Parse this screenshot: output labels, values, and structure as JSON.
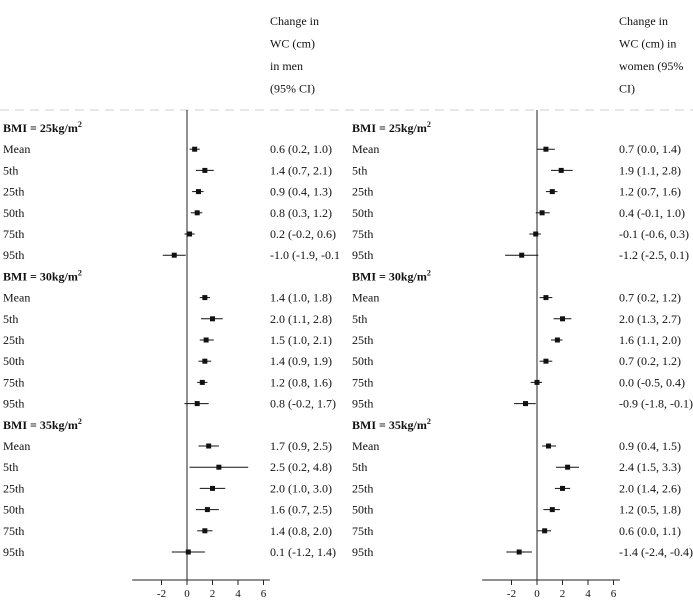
{
  "chart_data": [
    {
      "type": "scatter",
      "subtype": "forest_plot",
      "header_lines": [
        "Change in",
        "WC (cm)",
        "in men",
        "(95% CI)"
      ],
      "xaxis": {
        "ticks": [
          "-2",
          "0",
          "2",
          "4",
          "6"
        ],
        "xlim": [
          -4.3,
          6.5
        ],
        "reference_line": 0
      },
      "groups": [
        {
          "label": "BMI = 25kg/m",
          "sup": "2",
          "rows": [
            {
              "label": "Mean",
              "est": 0.6,
              "lo": 0.2,
              "hi": 1.0,
              "ci_text": "0.6 (0.2, 1.0)"
            },
            {
              "label": "5th",
              "est": 1.4,
              "lo": 0.7,
              "hi": 2.1,
              "ci_text": "1.4 (0.7, 2.1)"
            },
            {
              "label": "25th",
              "est": 0.9,
              "lo": 0.4,
              "hi": 1.3,
              "ci_text": "0.9 (0.4, 1.3)"
            },
            {
              "label": "50th",
              "est": 0.8,
              "lo": 0.3,
              "hi": 1.2,
              "ci_text": "0.8 (0.3, 1.2)"
            },
            {
              "label": "75th",
              "est": 0.2,
              "lo": -0.2,
              "hi": 0.6,
              "ci_text": "0.2 (-0.2, 0.6)"
            },
            {
              "label": "95th",
              "est": -1.0,
              "lo": -1.9,
              "hi": -0.1,
              "ci_text": "-1.0 (-1.9, -0.1"
            }
          ]
        },
        {
          "label": "BMI = 30kg/m",
          "sup": "2",
          "rows": [
            {
              "label": "Mean",
              "est": 1.4,
              "lo": 1.0,
              "hi": 1.8,
              "ci_text": "1.4 (1.0, 1.8)"
            },
            {
              "label": "5th",
              "est": 2.0,
              "lo": 1.1,
              "hi": 2.8,
              "ci_text": "2.0 (1.1, 2.8)"
            },
            {
              "label": "25th",
              "est": 1.5,
              "lo": 1.0,
              "hi": 2.1,
              "ci_text": "1.5 (1.0, 2.1)"
            },
            {
              "label": "50th",
              "est": 1.4,
              "lo": 0.9,
              "hi": 1.9,
              "ci_text": "1.4 (0.9, 1.9)"
            },
            {
              "label": "75th",
              "est": 1.2,
              "lo": 0.8,
              "hi": 1.6,
              "ci_text": "1.2 (0.8, 1.6)"
            },
            {
              "label": "95th",
              "est": 0.8,
              "lo": -0.2,
              "hi": 1.7,
              "ci_text": "0.8 (-0.2, 1.7)"
            }
          ]
        },
        {
          "label": "BMI = 35kg/m",
          "sup": "2",
          "rows": [
            {
              "label": "Mean",
              "est": 1.7,
              "lo": 0.9,
              "hi": 2.5,
              "ci_text": "1.7 (0.9, 2.5)"
            },
            {
              "label": "5th",
              "est": 2.5,
              "lo": 0.2,
              "hi": 4.8,
              "ci_text": "2.5 (0.2, 4.8)"
            },
            {
              "label": "25th",
              "est": 2.0,
              "lo": 1.0,
              "hi": 3.0,
              "ci_text": "2.0 (1.0, 3.0)"
            },
            {
              "label": "50th",
              "est": 1.6,
              "lo": 0.7,
              "hi": 2.5,
              "ci_text": "1.6 (0.7, 2.5)"
            },
            {
              "label": "75th",
              "est": 1.4,
              "lo": 0.8,
              "hi": 2.0,
              "ci_text": "1.4 (0.8, 2.0)"
            },
            {
              "label": "95th",
              "est": 0.1,
              "lo": -1.2,
              "hi": 1.4,
              "ci_text": "0.1 (-1.2, 1.4)"
            }
          ]
        }
      ]
    },
    {
      "type": "scatter",
      "subtype": "forest_plot",
      "header_lines": [
        "Change in",
        "WC (cm) in",
        "women (95%",
        "CI)"
      ],
      "xaxis": {
        "ticks": [
          "-2",
          "0",
          "2",
          "4",
          "6"
        ],
        "xlim": [
          -4.3,
          6.5
        ],
        "reference_line": 0
      },
      "groups": [
        {
          "label": "BMI = 25kg/m",
          "sup": "2",
          "rows": [
            {
              "label": "Mean",
              "est": 0.7,
              "lo": 0.0,
              "hi": 1.4,
              "ci_text": "0.7 (0.0, 1.4)"
            },
            {
              "label": "5th",
              "est": 1.9,
              "lo": 1.1,
              "hi": 2.8,
              "ci_text": "1.9 (1.1, 2.8)"
            },
            {
              "label": "25th",
              "est": 1.2,
              "lo": 0.7,
              "hi": 1.6,
              "ci_text": "1.2 (0.7, 1.6)"
            },
            {
              "label": "50th",
              "est": 0.4,
              "lo": -0.1,
              "hi": 1.0,
              "ci_text": "0.4 (-0.1, 1.0)"
            },
            {
              "label": "75th",
              "est": -0.1,
              "lo": -0.6,
              "hi": 0.3,
              "ci_text": "-0.1 (-0.6, 0.3)"
            },
            {
              "label": "95th",
              "est": -1.2,
              "lo": -2.5,
              "hi": 0.1,
              "ci_text": "-1.2 (-2.5, 0.1)"
            }
          ]
        },
        {
          "label": "BMI = 30kg/m",
          "sup": "2",
          "rows": [
            {
              "label": "Mean",
              "est": 0.7,
              "lo": 0.2,
              "hi": 1.2,
              "ci_text": "0.7 (0.2, 1.2)"
            },
            {
              "label": "5th",
              "est": 2.0,
              "lo": 1.3,
              "hi": 2.7,
              "ci_text": "2.0 (1.3, 2.7)"
            },
            {
              "label": "25th",
              "est": 1.6,
              "lo": 1.1,
              "hi": 2.0,
              "ci_text": "1.6 (1.1, 2.0)"
            },
            {
              "label": "50th",
              "est": 0.7,
              "lo": 0.2,
              "hi": 1.2,
              "ci_text": "0.7 (0.2, 1.2)"
            },
            {
              "label": "75th",
              "est": 0.0,
              "lo": -0.5,
              "hi": 0.4,
              "ci_text": "0.0 (-0.5, 0.4)"
            },
            {
              "label": "95th",
              "est": -0.9,
              "lo": -1.8,
              "hi": -0.1,
              "ci_text": "-0.9 (-1.8, -0.1)"
            }
          ]
        },
        {
          "label": "BMI = 35kg/m",
          "sup": "2",
          "rows": [
            {
              "label": "Mean",
              "est": 0.9,
              "lo": 0.4,
              "hi": 1.5,
              "ci_text": "0.9 (0.4, 1.5)"
            },
            {
              "label": "5th",
              "est": 2.4,
              "lo": 1.5,
              "hi": 3.3,
              "ci_text": "2.4 (1.5, 3.3)"
            },
            {
              "label": "25th",
              "est": 2.0,
              "lo": 1.4,
              "hi": 2.6,
              "ci_text": "2.0 (1.4, 2.6)"
            },
            {
              "label": "50th",
              "est": 1.2,
              "lo": 0.5,
              "hi": 1.8,
              "ci_text": "1.2 (0.5, 1.8)"
            },
            {
              "label": "75th",
              "est": 0.6,
              "lo": 0.0,
              "hi": 1.1,
              "ci_text": "0.6 (0.0, 1.1)"
            },
            {
              "label": "95th",
              "est": -1.4,
              "lo": -2.4,
              "hi": -0.4,
              "ci_text": "-1.4 (-2.4, -0.4)"
            }
          ]
        }
      ]
    }
  ],
  "colors": {
    "ink": "#111111",
    "axis": "#222222",
    "separator": "#cfcfcf"
  }
}
